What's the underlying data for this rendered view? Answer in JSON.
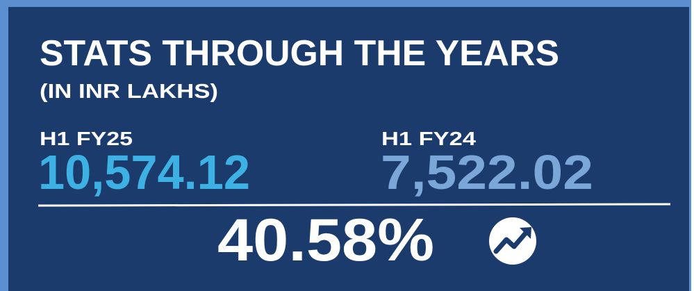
{
  "header": {
    "title": "STATS THROUGH THE YEARS",
    "subtitle": "(IN INR LAKHS)"
  },
  "stats": [
    {
      "label": "H1 FY25",
      "value": "10,574.12"
    },
    {
      "label": "H1 FY24",
      "value": "7,522.02"
    }
  ],
  "change": "40.58%"
}
